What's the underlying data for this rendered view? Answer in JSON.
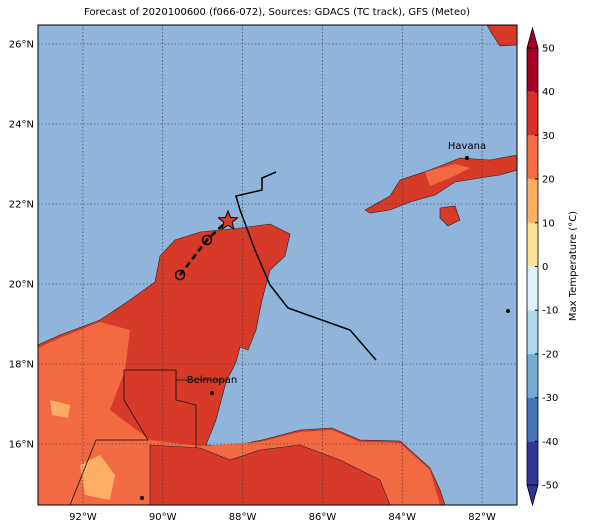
{
  "map": {
    "title": "Forecast of 2020100600 (f066-072), Sources: GDACS (TC track), GFS (Meteo)",
    "lon_lim": [
      -93.125,
      -81.125
    ],
    "lat_lim": [
      14.475,
      26.475
    ],
    "lon_ticks": [
      {
        "value": -92,
        "label": "92°W"
      },
      {
        "value": -90,
        "label": "90°W"
      },
      {
        "value": -88,
        "label": "88°W"
      },
      {
        "value": -86,
        "label": "86°W"
      },
      {
        "value": -84,
        "label": "84°W"
      },
      {
        "value": -82,
        "label": "82°W"
      }
    ],
    "lat_ticks": [
      {
        "value": 16,
        "label": "16°N"
      },
      {
        "value": 18,
        "label": "18°N"
      },
      {
        "value": 20,
        "label": "20°N"
      },
      {
        "value": 22,
        "label": "22°N"
      },
      {
        "value": 24,
        "label": "24°N"
      },
      {
        "value": 26,
        "label": "26°N"
      }
    ],
    "cities": [
      "Havana",
      "Belmopan"
    ]
  },
  "colorbar": {
    "label": "Max Temperature (°C)",
    "lim": [
      -50,
      50
    ],
    "ticks": [
      -50,
      -40,
      -30,
      -20,
      -10,
      0,
      10,
      20,
      30,
      40,
      50
    ],
    "colors": [
      "#313695",
      "#4575b4",
      "#74add1",
      "#abd9e9",
      "#e0f3f8",
      "#fee090",
      "#fdae61",
      "#f46d43",
      "#d73027",
      "#a50026"
    ]
  }
}
